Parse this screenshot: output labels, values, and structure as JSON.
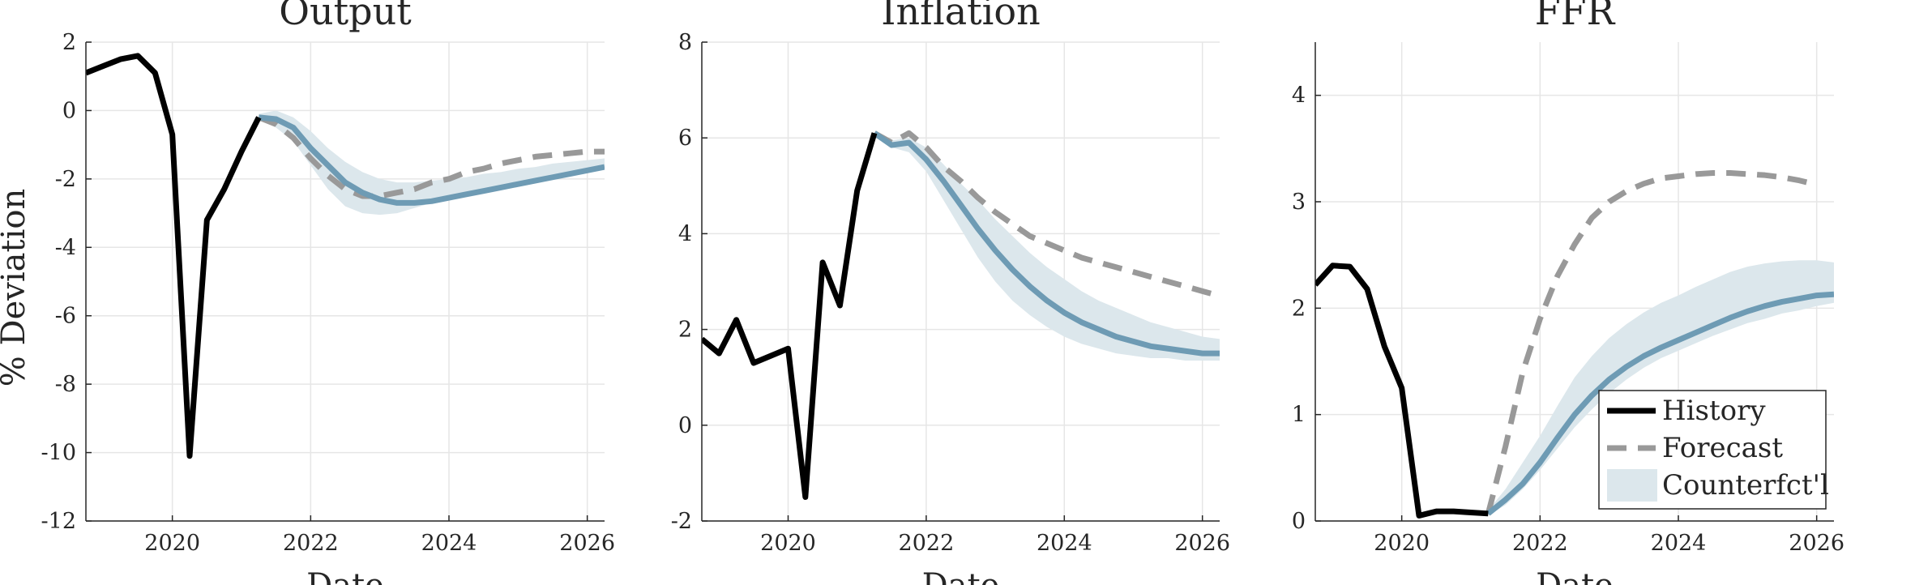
{
  "figure": {
    "ylabel": "% Deviation",
    "legend": {
      "placement": "bottom-right of FFR panel",
      "entries": [
        "History",
        "Forecast",
        "Counterfct'l"
      ]
    },
    "colors": {
      "history": "#000000",
      "forecast": "#999999",
      "counterfactual": "#6e9bb4",
      "band": "#dce7ec",
      "grid": "#e6e6e6"
    }
  },
  "chart_data": [
    {
      "type": "line",
      "title": "Output",
      "xlabel": "Date",
      "ylabel": "% Deviation",
      "xlim": [
        2018.75,
        2026.25
      ],
      "ylim": [
        -12,
        2
      ],
      "xticks": [
        "2020",
        "2022",
        "2024",
        "2026"
      ],
      "yticks": [
        "-12",
        "-10",
        "-8",
        "-6",
        "-4",
        "-2",
        "0",
        "2"
      ],
      "grid": true,
      "series": [
        {
          "name": "History",
          "style": "solid-black",
          "x": [
            2018.75,
            2019.0,
            2019.25,
            2019.5,
            2019.75,
            2020.0,
            2020.25,
            2020.5,
            2020.75,
            2021.0,
            2021.25
          ],
          "y": [
            1.1,
            1.3,
            1.5,
            1.6,
            1.1,
            -0.7,
            -10.1,
            -3.2,
            -2.3,
            -1.2,
            -0.2
          ]
        },
        {
          "name": "Forecast",
          "style": "dashed-gray",
          "x": [
            2021.25,
            2021.5,
            2021.75,
            2022.0,
            2022.25,
            2022.5,
            2022.75,
            2023.0,
            2023.25,
            2023.5,
            2023.75,
            2024.0,
            2024.25,
            2024.5,
            2024.75,
            2025.0,
            2025.25,
            2025.5,
            2025.75,
            2026.0,
            2026.25
          ],
          "y": [
            -0.2,
            -0.4,
            -0.8,
            -1.4,
            -1.9,
            -2.3,
            -2.5,
            -2.5,
            -2.4,
            -2.3,
            -2.1,
            -2.0,
            -1.8,
            -1.7,
            -1.55,
            -1.45,
            -1.35,
            -1.3,
            -1.25,
            -1.2,
            -1.2
          ]
        },
        {
          "name": "Counterfct'l",
          "style": "solid-blue",
          "x": [
            2021.25,
            2021.5,
            2021.75,
            2022.0,
            2022.25,
            2022.5,
            2022.75,
            2023.0,
            2023.25,
            2023.5,
            2023.75,
            2024.0,
            2024.25,
            2024.5,
            2024.75,
            2025.0,
            2025.25,
            2025.5,
            2025.75,
            2026.0,
            2026.25
          ],
          "y": [
            -0.2,
            -0.25,
            -0.5,
            -1.1,
            -1.6,
            -2.1,
            -2.4,
            -2.6,
            -2.7,
            -2.7,
            -2.65,
            -2.55,
            -2.45,
            -2.35,
            -2.25,
            -2.15,
            -2.05,
            -1.95,
            -1.85,
            -1.75,
            -1.65
          ]
        }
      ],
      "band": {
        "x": [
          2021.25,
          2021.5,
          2021.75,
          2022.0,
          2022.25,
          2022.5,
          2022.75,
          2023.0,
          2023.25,
          2023.5,
          2023.75,
          2024.0,
          2024.25,
          2024.5,
          2024.75,
          2025.0,
          2025.25,
          2025.5,
          2025.75,
          2026.0,
          2026.25
        ],
        "lower": [
          -0.2,
          -0.5,
          -0.9,
          -1.6,
          -2.3,
          -2.8,
          -3.0,
          -3.05,
          -3.0,
          -2.85,
          -2.7,
          -2.55,
          -2.45,
          -2.35,
          -2.25,
          -2.15,
          -2.05,
          -1.95,
          -1.85,
          -1.75,
          -1.7
        ],
        "upper": [
          -0.1,
          0.0,
          -0.2,
          -0.6,
          -1.1,
          -1.5,
          -1.8,
          -2.0,
          -2.1,
          -2.1,
          -2.05,
          -2.0,
          -1.95,
          -1.85,
          -1.8,
          -1.7,
          -1.65,
          -1.55,
          -1.5,
          -1.45,
          -1.4
        ]
      }
    },
    {
      "type": "line",
      "title": "Inflation",
      "xlabel": "Date",
      "ylabel": "",
      "xlim": [
        2018.75,
        2026.25
      ],
      "ylim": [
        -2,
        8
      ],
      "xticks": [
        "2020",
        "2022",
        "2024",
        "2026"
      ],
      "yticks": [
        "-2",
        "0",
        "2",
        "4",
        "6",
        "8"
      ],
      "grid": true,
      "series": [
        {
          "name": "History",
          "style": "solid-black",
          "x": [
            2018.75,
            2019.0,
            2019.25,
            2019.5,
            2019.75,
            2020.0,
            2020.25,
            2020.5,
            2020.75,
            2021.0,
            2021.25
          ],
          "y": [
            1.8,
            1.5,
            2.2,
            1.3,
            1.45,
            1.6,
            -1.5,
            3.4,
            2.5,
            4.9,
            6.1
          ]
        },
        {
          "name": "Forecast",
          "style": "dashed-gray",
          "x": [
            2021.25,
            2021.5,
            2021.75,
            2022.0,
            2022.25,
            2022.5,
            2022.75,
            2023.0,
            2023.25,
            2023.5,
            2023.75,
            2024.0,
            2024.25,
            2024.5,
            2024.75,
            2025.0,
            2025.25,
            2025.5,
            2025.75,
            2026.0,
            2026.25
          ],
          "y": [
            6.1,
            5.9,
            6.1,
            5.8,
            5.4,
            5.1,
            4.75,
            4.45,
            4.2,
            3.95,
            3.8,
            3.65,
            3.5,
            3.4,
            3.3,
            3.2,
            3.1,
            3.0,
            2.9,
            2.8,
            2.7
          ]
        },
        {
          "name": "Counterfct'l",
          "style": "solid-blue",
          "x": [
            2021.25,
            2021.5,
            2021.75,
            2022.0,
            2022.25,
            2022.5,
            2022.75,
            2023.0,
            2023.25,
            2023.5,
            2023.75,
            2024.0,
            2024.25,
            2024.5,
            2024.75,
            2025.0,
            2025.25,
            2025.5,
            2025.75,
            2026.0,
            2026.25
          ],
          "y": [
            6.1,
            5.85,
            5.9,
            5.55,
            5.1,
            4.6,
            4.1,
            3.65,
            3.25,
            2.9,
            2.6,
            2.35,
            2.15,
            2.0,
            1.85,
            1.75,
            1.65,
            1.6,
            1.55,
            1.5,
            1.5
          ]
        }
      ],
      "band": {
        "x": [
          2021.25,
          2021.5,
          2021.75,
          2022.0,
          2022.25,
          2022.5,
          2022.75,
          2023.0,
          2023.25,
          2023.5,
          2023.75,
          2024.0,
          2024.25,
          2024.5,
          2024.75,
          2025.0,
          2025.25,
          2025.5,
          2025.75,
          2026.0,
          2026.25
        ],
        "lower": [
          6.1,
          5.8,
          5.7,
          5.3,
          4.7,
          4.1,
          3.5,
          3.0,
          2.6,
          2.3,
          2.05,
          1.85,
          1.7,
          1.6,
          1.5,
          1.45,
          1.4,
          1.4,
          1.35,
          1.35,
          1.35
        ],
        "upper": [
          6.1,
          5.95,
          6.0,
          5.8,
          5.45,
          5.05,
          4.7,
          4.3,
          3.95,
          3.6,
          3.3,
          3.05,
          2.8,
          2.6,
          2.45,
          2.3,
          2.15,
          2.05,
          1.95,
          1.85,
          1.8
        ]
      }
    },
    {
      "type": "line",
      "title": "FFR",
      "xlabel": "Date",
      "ylabel": "",
      "xlim": [
        2018.75,
        2026.25
      ],
      "ylim": [
        0,
        4.5
      ],
      "xticks": [
        "2020",
        "2022",
        "2024",
        "2026"
      ],
      "yticks": [
        "0",
        "1",
        "2",
        "3",
        "4"
      ],
      "grid": true,
      "series": [
        {
          "name": "History",
          "style": "solid-black",
          "x": [
            2018.75,
            2019.0,
            2019.25,
            2019.5,
            2019.75,
            2020.0,
            2020.25,
            2020.5,
            2020.75,
            2021.0,
            2021.25
          ],
          "y": [
            2.22,
            2.4,
            2.39,
            2.18,
            1.64,
            1.25,
            0.05,
            0.09,
            0.09,
            0.08,
            0.07
          ]
        },
        {
          "name": "Forecast",
          "style": "dashed-gray",
          "x": [
            2021.25,
            2021.5,
            2021.75,
            2022.0,
            2022.25,
            2022.5,
            2022.75,
            2023.0,
            2023.25,
            2023.5,
            2023.75,
            2024.0,
            2024.25,
            2024.5,
            2024.75,
            2025.0,
            2025.25,
            2025.5,
            2025.75,
            2026.0
          ],
          "y": [
            0.07,
            0.7,
            1.4,
            1.9,
            2.3,
            2.6,
            2.85,
            3.0,
            3.1,
            3.17,
            3.22,
            3.24,
            3.26,
            3.27,
            3.27,
            3.26,
            3.25,
            3.23,
            3.2,
            3.16
          ]
        },
        {
          "name": "Counterfct'l",
          "style": "solid-blue",
          "x": [
            2021.25,
            2021.5,
            2021.75,
            2022.0,
            2022.25,
            2022.5,
            2022.75,
            2023.0,
            2023.25,
            2023.5,
            2023.75,
            2024.0,
            2024.25,
            2024.5,
            2024.75,
            2025.0,
            2025.25,
            2025.5,
            2025.75,
            2026.0,
            2026.25
          ],
          "y": [
            0.07,
            0.2,
            0.35,
            0.55,
            0.78,
            1.0,
            1.18,
            1.33,
            1.45,
            1.55,
            1.63,
            1.7,
            1.77,
            1.84,
            1.91,
            1.97,
            2.02,
            2.06,
            2.09,
            2.12,
            2.13
          ]
        }
      ],
      "band": {
        "x": [
          2021.25,
          2021.5,
          2021.75,
          2022.0,
          2022.25,
          2022.5,
          2022.75,
          2023.0,
          2023.25,
          2023.5,
          2023.75,
          2024.0,
          2024.25,
          2024.5,
          2024.75,
          2025.0,
          2025.25,
          2025.5,
          2025.75,
          2026.0,
          2026.25
        ],
        "lower": [
          0.05,
          0.15,
          0.3,
          0.48,
          0.68,
          0.88,
          1.05,
          1.2,
          1.33,
          1.44,
          1.53,
          1.6,
          1.67,
          1.74,
          1.8,
          1.86,
          1.9,
          1.95,
          1.98,
          2.02,
          2.05
        ],
        "upper": [
          0.1,
          0.3,
          0.55,
          0.8,
          1.08,
          1.35,
          1.55,
          1.72,
          1.85,
          1.96,
          2.05,
          2.12,
          2.2,
          2.27,
          2.34,
          2.39,
          2.42,
          2.44,
          2.45,
          2.45,
          2.43
        ]
      }
    }
  ]
}
